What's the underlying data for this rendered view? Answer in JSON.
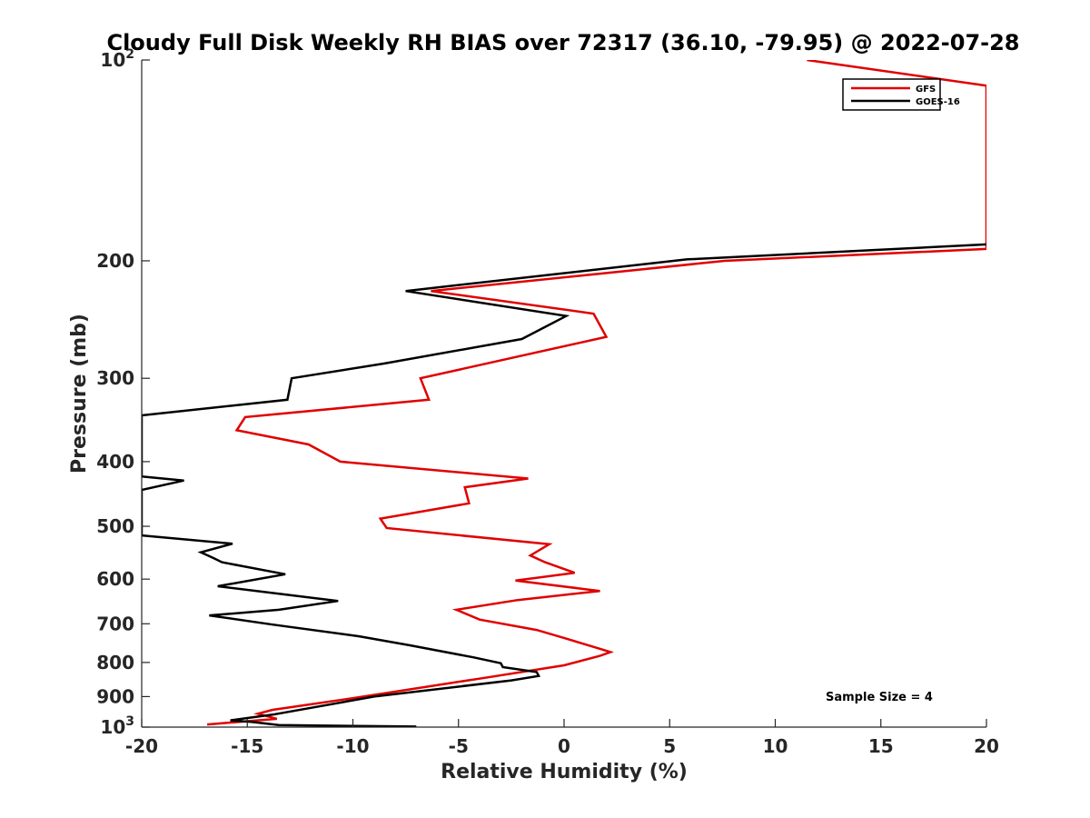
{
  "chart_data": {
    "type": "line",
    "title": "Cloudy Full Disk Weekly RH BIAS over 72317 (36.10, -79.95) @ 2022-07-28",
    "xlabel": "Relative Humidity (%)",
    "ylabel": "Pressure (mb)",
    "xlim": [
      -20,
      20
    ],
    "ylim": [
      100,
      1000
    ],
    "y_scale": "log",
    "y_reversed": true,
    "x_ticks": [
      "-20",
      "-15",
      "-10",
      "-5",
      "0",
      "5",
      "10",
      "15",
      "20"
    ],
    "y_ticks": [
      {
        "value": 100,
        "base": "10",
        "exp": "2"
      },
      {
        "value": 200,
        "label": "200"
      },
      {
        "value": 300,
        "label": "300"
      },
      {
        "value": 400,
        "label": "400"
      },
      {
        "value": 500,
        "label": "500"
      },
      {
        "value": 600,
        "label": "600"
      },
      {
        "value": 700,
        "label": "700"
      },
      {
        "value": 800,
        "label": "800"
      },
      {
        "value": 900,
        "label": "900"
      },
      {
        "value": 1000,
        "base": "10",
        "exp": "3"
      }
    ],
    "legend_position": "top-right",
    "grid": false,
    "annotation": "Sample Size = 4",
    "series": [
      {
        "name": "GFS",
        "color": "#e00000",
        "points": [
          [
            11.5,
            100
          ],
          [
            20,
            109.3
          ],
          [
            20,
            192
          ],
          [
            7.6,
            200
          ],
          [
            -6.3,
            222
          ],
          [
            1.4,
            240
          ],
          [
            2,
            260
          ],
          [
            -6.8,
            300
          ],
          [
            -6.4,
            323
          ],
          [
            -15.1,
            343
          ],
          [
            -15.5,
            359
          ],
          [
            -12.1,
            377
          ],
          [
            -10.6,
            400
          ],
          [
            -1.7,
            424
          ],
          [
            -4.7,
            437
          ],
          [
            -4.5,
            462
          ],
          [
            -8.7,
            487
          ],
          [
            -8.4,
            503
          ],
          [
            -0.7,
            532
          ],
          [
            -1.6,
            553
          ],
          [
            -0.9,
            566
          ],
          [
            0.5,
            587
          ],
          [
            -2.3,
            603
          ],
          [
            1.7,
            625
          ],
          [
            -2.2,
            645
          ],
          [
            -5.1,
            667
          ],
          [
            -4.0,
            690
          ],
          [
            -1.3,
            715
          ],
          [
            0,
            735
          ],
          [
            1.8,
            765
          ],
          [
            2.2,
            772
          ],
          [
            1.7,
            782
          ],
          [
            0,
            808
          ],
          [
            -3.9,
            845
          ],
          [
            -5.4,
            859
          ],
          [
            -10.2,
            907
          ],
          [
            -13.8,
            942
          ],
          [
            -14.5,
            955
          ],
          [
            -13.6,
            972
          ],
          [
            -16.9,
            991
          ]
        ]
      },
      {
        "name": "GOES-16",
        "color": "#000000",
        "points": [
          [
            20,
            189
          ],
          [
            5.8,
            199
          ],
          [
            -7.5,
            222
          ],
          [
            0.1,
            242
          ],
          [
            -2,
            262
          ],
          [
            -8.5,
            285
          ],
          [
            -12.9,
            300
          ],
          [
            -13.1,
            323
          ],
          [
            -20,
            341
          ],
          [
            -20,
            421
          ],
          [
            -18.0,
            427
          ],
          [
            -20,
            441
          ],
          [
            -20,
            516
          ],
          [
            -15.7,
            531
          ],
          [
            -17.2,
            547
          ],
          [
            -16.6,
            558
          ],
          [
            -16.2,
            566
          ],
          [
            -13.2,
            590
          ],
          [
            -16.4,
            615
          ],
          [
            -10.7,
            647
          ],
          [
            -13.5,
            667
          ],
          [
            -16.8,
            680
          ],
          [
            -13.8,
            702
          ],
          [
            -9.7,
            731
          ],
          [
            -7.3,
            754
          ],
          [
            -4.3,
            786
          ],
          [
            -3.0,
            802
          ],
          [
            -2.9,
            813
          ],
          [
            -1.3,
            827
          ],
          [
            -1.2,
            838
          ],
          [
            -2.5,
            851
          ],
          [
            -9.0,
            900
          ],
          [
            -13.8,
            958
          ],
          [
            -15.8,
            977
          ],
          [
            -14.8,
            982
          ],
          [
            -13.5,
            993
          ],
          [
            -7.0,
            998
          ]
        ]
      }
    ]
  }
}
